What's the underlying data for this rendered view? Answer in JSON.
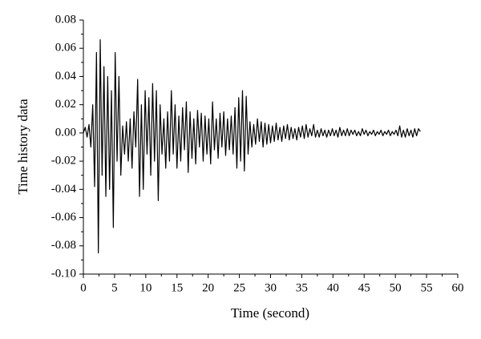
{
  "chart_data": {
    "type": "line",
    "xlabel": "Time (second)",
    "ylabel": "Time history data",
    "color": "#000000",
    "xlim": [
      0,
      60
    ],
    "xticks": [
      0,
      5,
      10,
      15,
      20,
      25,
      30,
      35,
      40,
      45,
      50,
      55,
      60
    ],
    "ylim": [
      -0.1,
      0.08
    ],
    "yticks": [
      {
        "value": -0.1,
        "label": "-0.10"
      },
      -0.08,
      -0.06,
      -0.04,
      -0.02,
      {
        "value": 0,
        "label": "0.00"
      },
      0.02,
      0.04,
      0.06,
      0.08
    ],
    "x": [
      0,
      0.3,
      0.6,
      0.9,
      1.2,
      1.5,
      1.8,
      2.1,
      2.4,
      2.7,
      3,
      3.3,
      3.6,
      3.9,
      4.2,
      4.5,
      4.8,
      5.1,
      5.4,
      5.7,
      6,
      6.3,
      6.6,
      6.9,
      7.2,
      7.5,
      7.8,
      8.1,
      8.4,
      8.7,
      9,
      9.3,
      9.6,
      9.9,
      10.2,
      10.5,
      10.8,
      11.1,
      11.4,
      11.7,
      12,
      12.3,
      12.6,
      12.9,
      13.2,
      13.5,
      13.8,
      14.1,
      14.4,
      14.7,
      15,
      15.3,
      15.6,
      15.9,
      16.2,
      16.5,
      16.8,
      17.1,
      17.4,
      17.7,
      18,
      18.3,
      18.6,
      18.9,
      19.2,
      19.5,
      19.8,
      20.1,
      20.4,
      20.7,
      21,
      21.3,
      21.6,
      21.9,
      22.2,
      22.5,
      22.8,
      23.1,
      23.4,
      23.7,
      24,
      24.3,
      24.6,
      24.9,
      25.2,
      25.5,
      25.8,
      26.1,
      26.4,
      26.7,
      27,
      27.3,
      27.6,
      27.9,
      28.2,
      28.5,
      28.8,
      29.1,
      29.4,
      29.7,
      30,
      30.3,
      30.6,
      30.9,
      31.2,
      31.5,
      31.8,
      32.1,
      32.4,
      32.7,
      33,
      33.3,
      33.6,
      33.9,
      34.2,
      34.5,
      34.8,
      35.1,
      35.4,
      35.7,
      36,
      36.3,
      36.6,
      36.9,
      37.2,
      37.5,
      37.8,
      38.1,
      38.4,
      38.7,
      39,
      39.3,
      39.6,
      39.9,
      40.2,
      40.5,
      40.8,
      41.1,
      41.4,
      41.7,
      42,
      42.3,
      42.6,
      42.9,
      43.2,
      43.5,
      43.8,
      44.1,
      44.4,
      44.7,
      45,
      45.3,
      45.6,
      45.9,
      46.2,
      46.5,
      46.8,
      47.1,
      47.4,
      47.7,
      48,
      48.3,
      48.6,
      48.9,
      49.2,
      49.5,
      49.8,
      50.1,
      50.4,
      50.7,
      51,
      51.3,
      51.6,
      51.9,
      52.2,
      52.5,
      52.8,
      53.1,
      53.4,
      53.7,
      54
    ],
    "values": [
      0,
      0.004,
      -0.003,
      0.006,
      -0.01,
      0.02,
      -0.038,
      0.057,
      -0.085,
      0.066,
      -0.03,
      0.047,
      -0.045,
      0.04,
      -0.04,
      0.03,
      -0.067,
      0.057,
      -0.02,
      0.04,
      -0.03,
      0.005,
      -0.015,
      0.008,
      -0.02,
      0.01,
      -0.025,
      0.015,
      -0.01,
      0.038,
      -0.045,
      0.02,
      -0.04,
      0.03,
      -0.015,
      0.025,
      -0.03,
      0.035,
      -0.02,
      0.03,
      -0.048,
      0.02,
      -0.015,
      0.01,
      -0.025,
      0.015,
      -0.02,
      0.03,
      -0.015,
      0.02,
      -0.025,
      0.012,
      -0.02,
      0.018,
      -0.012,
      0.022,
      -0.028,
      0.015,
      -0.018,
      0.01,
      -0.022,
      0.016,
      -0.01,
      0.014,
      -0.02,
      0.012,
      -0.015,
      0.01,
      -0.022,
      0.022,
      -0.012,
      0.01,
      -0.018,
      0.014,
      -0.01,
      0.015,
      -0.016,
      0.01,
      -0.012,
      0.012,
      -0.015,
      0.018,
      -0.025,
      0.025,
      -0.02,
      0.03,
      -0.027,
      0.026,
      -0.015,
      0.008,
      -0.01,
      0.006,
      -0.008,
      0.01,
      -0.006,
      0.008,
      -0.01,
      0.007,
      -0.008,
      0.006,
      -0.007,
      0.005,
      -0.006,
      0.007,
      -0.005,
      0.004,
      -0.006,
      0.005,
      -0.004,
      0.006,
      -0.005,
      0.004,
      -0.004,
      0.003,
      -0.005,
      0.004,
      -0.003,
      0.005,
      -0.004,
      0.006,
      -0.003,
      0.003,
      -0.002,
      0.006,
      -0.003,
      0.002,
      -0.003,
      0.003,
      -0.002,
      0.002,
      -0.003,
      0.002,
      -0.002,
      0.003,
      -0.002,
      0.002,
      -0.003,
      0.004,
      -0.002,
      0.002,
      -0.002,
      0.003,
      -0.002,
      0.002,
      -0.001,
      0.002,
      -0.002,
      0.001,
      -0.002,
      0.003,
      -0.001,
      0.002,
      -0.002,
      0.001,
      -0.001,
      0.002,
      -0.002,
      0.001,
      -0.001,
      0.002,
      -0.002,
      0.001,
      -0.001,
      0.002,
      -0.002,
      0.001,
      -0.001,
      0.002,
      -0.002,
      0.005,
      -0.003,
      0.002,
      -0.003,
      0.003,
      -0.002,
      0.002,
      -0.003,
      0.003,
      -0.002,
      0.003,
      0.001
    ]
  }
}
